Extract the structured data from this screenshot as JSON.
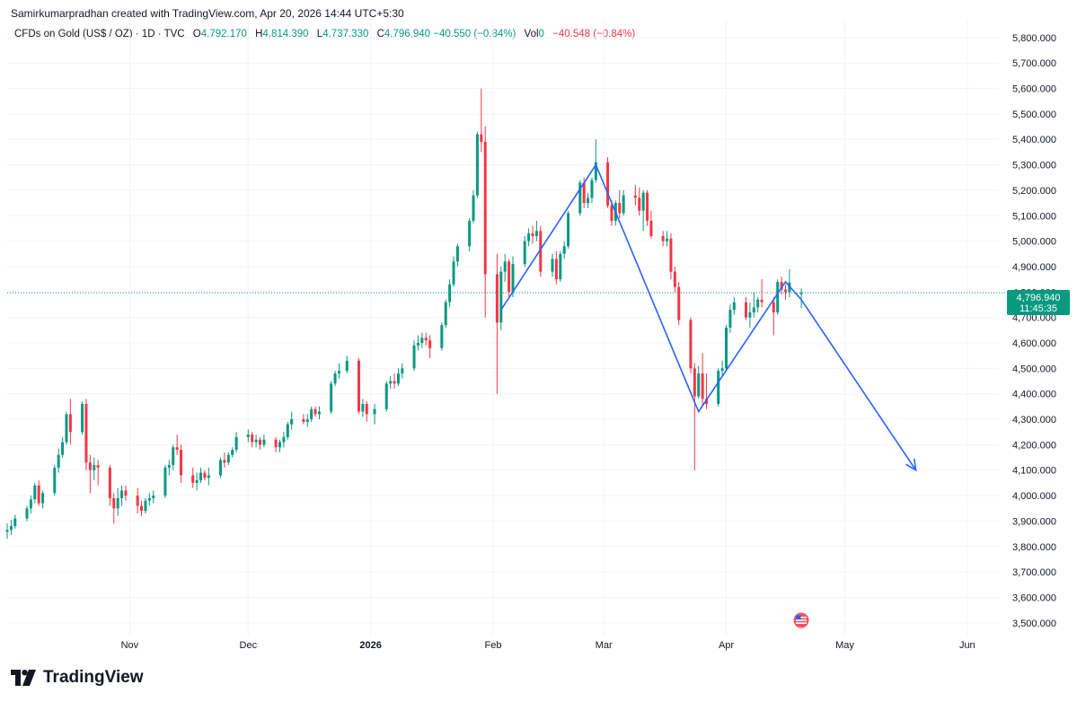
{
  "header": {
    "attribution": "Samirkumarpradhan created with TradingView.com, Apr 20, 2026 14:44 UTC+5:30"
  },
  "legend": {
    "symbol": "CFDs on Gold (US$ / OZ) · 1D · TVC",
    "o_label": "O",
    "o_value": "4,792.170",
    "h_label": "H",
    "h_value": "4,814.390",
    "l_label": "L",
    "l_value": "4,737.330",
    "c_label": "C",
    "c_value": "4,796.940",
    "change": "−40.550 (−0.84%)",
    "vol_label": "Vol",
    "vol_value": "0",
    "vol_change": "−40.548 (−0.84%)"
  },
  "price_tag": {
    "price": "4,796.940",
    "countdown": "11:45:35"
  },
  "logo": {
    "text": "TradingView"
  },
  "colors": {
    "up": "#089981",
    "down": "#f23645",
    "projection": "#2962ff",
    "grid": "#f0f3fa"
  },
  "chart_data": {
    "type": "candlestick",
    "title": "CFDs on Gold (US$ / OZ) · 1D · TVC",
    "xlabel": "",
    "ylabel": "",
    "ylim": [
      3450,
      5870
    ],
    "x_range": [
      "2025-10-01",
      "2026-06-09"
    ],
    "y_ticks": [
      {
        "value": 3500,
        "label": "3,500.000"
      },
      {
        "value": 3600,
        "label": "3,600.000"
      },
      {
        "value": 3700,
        "label": "3,700.000"
      },
      {
        "value": 3800,
        "label": "3,800.000"
      },
      {
        "value": 3900,
        "label": "3,900.000"
      },
      {
        "value": 4000,
        "label": "4,000.000"
      },
      {
        "value": 4100,
        "label": "4,100.000"
      },
      {
        "value": 4200,
        "label": "4,200.000"
      },
      {
        "value": 4300,
        "label": "4,300.000"
      },
      {
        "value": 4400,
        "label": "4,400.000"
      },
      {
        "value": 4500,
        "label": "4,500.000"
      },
      {
        "value": 4600,
        "label": "4,600.000"
      },
      {
        "value": 4700,
        "label": "4,700.000"
      },
      {
        "value": 4800,
        "label": "4,800.000"
      },
      {
        "value": 4900,
        "label": "4,900.000"
      },
      {
        "value": 5000,
        "label": "5,000.000"
      },
      {
        "value": 5100,
        "label": "5,100.000"
      },
      {
        "value": 5200,
        "label": "5,200.000"
      },
      {
        "value": 5300,
        "label": "5,300.000"
      },
      {
        "value": 5400,
        "label": "5,400.000"
      },
      {
        "value": 5500,
        "label": "5,500.000"
      },
      {
        "value": 5600,
        "label": "5,600.000"
      },
      {
        "value": 5700,
        "label": "5,700.000"
      },
      {
        "value": 5800,
        "label": "5,800.000"
      }
    ],
    "x_ticks": [
      {
        "date": "2025-11-01",
        "label": "Nov",
        "bold": false
      },
      {
        "date": "2025-12-01",
        "label": "Dec",
        "bold": false
      },
      {
        "date": "2026-01-01",
        "label": "2026",
        "bold": true
      },
      {
        "date": "2026-02-01",
        "label": "Feb",
        "bold": false
      },
      {
        "date": "2026-03-01",
        "label": "Mar",
        "bold": false
      },
      {
        "date": "2026-04-01",
        "label": "Apr",
        "bold": false
      },
      {
        "date": "2026-05-01",
        "label": "May",
        "bold": false
      },
      {
        "date": "2026-06-01",
        "label": "Jun",
        "bold": false
      }
    ],
    "last_price": 4796.94,
    "candles": [
      [
        "2025-10-01",
        3858,
        3890,
        3830,
        3865
      ],
      [
        "2025-10-02",
        3865,
        3905,
        3845,
        3880
      ],
      [
        "2025-10-03",
        3880,
        3925,
        3870,
        3910
      ],
      [
        "2025-10-06",
        3910,
        3960,
        3900,
        3950
      ],
      [
        "2025-10-07",
        3950,
        4000,
        3930,
        3985
      ],
      [
        "2025-10-08",
        3985,
        4050,
        3970,
        4040
      ],
      [
        "2025-10-09",
        4040,
        4060,
        3960,
        3970
      ],
      [
        "2025-10-10",
        3970,
        4020,
        3950,
        4010
      ],
      [
        "2025-10-13",
        4010,
        4120,
        4000,
        4110
      ],
      [
        "2025-10-14",
        4110,
        4185,
        4090,
        4160
      ],
      [
        "2025-10-15",
        4160,
        4230,
        4150,
        4210
      ],
      [
        "2025-10-16",
        4210,
        4330,
        4200,
        4320
      ],
      [
        "2025-10-17",
        4320,
        4380,
        4200,
        4250
      ],
      [
        "2025-10-20",
        4250,
        4370,
        4240,
        4360
      ],
      [
        "2025-10-21",
        4360,
        4380,
        4100,
        4130
      ],
      [
        "2025-10-22",
        4130,
        4160,
        4010,
        4100
      ],
      [
        "2025-10-23",
        4100,
        4150,
        4060,
        4120
      ],
      [
        "2025-10-24",
        4120,
        4140,
        4040,
        4110
      ],
      [
        "2025-10-27",
        4110,
        4120,
        3960,
        3990
      ],
      [
        "2025-10-28",
        3990,
        4010,
        3890,
        3950
      ],
      [
        "2025-10-29",
        3950,
        4030,
        3920,
        3990
      ],
      [
        "2025-10-30",
        3990,
        4040,
        3960,
        4020
      ],
      [
        "2025-10-31",
        4020,
        4040,
        3980,
        4000
      ],
      [
        "2025-11-03",
        4000,
        4030,
        3930,
        3960
      ],
      [
        "2025-11-04",
        3960,
        3980,
        3920,
        3940
      ],
      [
        "2025-11-05",
        3940,
        3990,
        3930,
        3980
      ],
      [
        "2025-11-06",
        3980,
        4010,
        3960,
        3990
      ],
      [
        "2025-11-07",
        3990,
        4020,
        3970,
        4000
      ],
      [
        "2025-11-10",
        4000,
        4120,
        3990,
        4110
      ],
      [
        "2025-11-11",
        4110,
        4140,
        4080,
        4120
      ],
      [
        "2025-11-12",
        4120,
        4200,
        4100,
        4190
      ],
      [
        "2025-11-13",
        4190,
        4240,
        4160,
        4180
      ],
      [
        "2025-11-14",
        4180,
        4200,
        4050,
        4080
      ],
      [
        "2025-11-17",
        4080,
        4110,
        4030,
        4050
      ],
      [
        "2025-11-18",
        4050,
        4090,
        4020,
        4060
      ],
      [
        "2025-11-19",
        4060,
        4110,
        4050,
        4090
      ],
      [
        "2025-11-20",
        4090,
        4100,
        4060,
        4070
      ],
      [
        "2025-11-21",
        4070,
        4110,
        4040,
        4080
      ],
      [
        "2025-11-24",
        4080,
        4150,
        4070,
        4140
      ],
      [
        "2025-11-25",
        4140,
        4170,
        4110,
        4130
      ],
      [
        "2025-11-26",
        4130,
        4170,
        4120,
        4160
      ],
      [
        "2025-11-27",
        4160,
        4190,
        4150,
        4180
      ],
      [
        "2025-11-28",
        4180,
        4250,
        4170,
        4230
      ],
      [
        "2025-12-01",
        4230,
        4260,
        4210,
        4240
      ],
      [
        "2025-12-02",
        4240,
        4250,
        4190,
        4210
      ],
      [
        "2025-12-03",
        4210,
        4240,
        4190,
        4220
      ],
      [
        "2025-12-04",
        4220,
        4230,
        4180,
        4200
      ],
      [
        "2025-12-05",
        4200,
        4240,
        4190,
        4220
      ],
      [
        "2025-12-08",
        4220,
        4230,
        4170,
        4190
      ],
      [
        "2025-12-09",
        4190,
        4220,
        4170,
        4210
      ],
      [
        "2025-12-10",
        4210,
        4250,
        4190,
        4230
      ],
      [
        "2025-12-11",
        4230,
        4290,
        4220,
        4280
      ],
      [
        "2025-12-12",
        4280,
        4330,
        4260,
        4300
      ],
      [
        "2025-12-15",
        4300,
        4320,
        4280,
        4290
      ],
      [
        "2025-12-16",
        4290,
        4320,
        4270,
        4300
      ],
      [
        "2025-12-17",
        4300,
        4350,
        4290,
        4340
      ],
      [
        "2025-12-18",
        4340,
        4350,
        4310,
        4320
      ],
      [
        "2025-12-19",
        4320,
        4350,
        4300,
        4330
      ],
      [
        "2025-12-22",
        4330,
        4450,
        4320,
        4440
      ],
      [
        "2025-12-23",
        4440,
        4490,
        4430,
        4480
      ],
      [
        "2025-12-24",
        4480,
        4520,
        4460,
        4490
      ],
      [
        "2025-12-26",
        4490,
        4550,
        4480,
        4530
      ],
      [
        "2025-12-29",
        4530,
        4540,
        4320,
        4330
      ],
      [
        "2025-12-30",
        4330,
        4380,
        4310,
        4360
      ],
      [
        "2025-12-31",
        4360,
        4370,
        4290,
        4320
      ],
      [
        "2026-01-02",
        4320,
        4360,
        4280,
        4340
      ],
      [
        "2026-01-05",
        4340,
        4450,
        4330,
        4440
      ],
      [
        "2026-01-06",
        4440,
        4470,
        4420,
        4450
      ],
      [
        "2026-01-07",
        4450,
        4480,
        4420,
        4440
      ],
      [
        "2026-01-08",
        4440,
        4500,
        4430,
        4480
      ],
      [
        "2026-01-09",
        4480,
        4520,
        4460,
        4500
      ],
      [
        "2026-01-12",
        4500,
        4610,
        4490,
        4590
      ],
      [
        "2026-01-13",
        4590,
        4630,
        4570,
        4600
      ],
      [
        "2026-01-14",
        4600,
        4640,
        4580,
        4620
      ],
      [
        "2026-01-15",
        4620,
        4640,
        4590,
        4610
      ],
      [
        "2026-01-16",
        4610,
        4630,
        4540,
        4580
      ],
      [
        "2026-01-19",
        4580,
        4680,
        4570,
        4670
      ],
      [
        "2026-01-20",
        4670,
        4770,
        4660,
        4760
      ],
      [
        "2026-01-21",
        4760,
        4850,
        4740,
        4830
      ],
      [
        "2026-01-22",
        4830,
        4940,
        4820,
        4920
      ],
      [
        "2026-01-23",
        4920,
        4990,
        4900,
        4980
      ],
      [
        "2026-01-26",
        4980,
        5090,
        4960,
        5080
      ],
      [
        "2026-01-27",
        5080,
        5200,
        5070,
        5180
      ],
      [
        "2026-01-28",
        5180,
        5430,
        5170,
        5420
      ],
      [
        "2026-01-29",
        5420,
        5600,
        5350,
        5390
      ],
      [
        "2026-01-30",
        5390,
        5450,
        4700,
        4870
      ],
      [
        "2026-02-02",
        4870,
        4950,
        4400,
        4680
      ],
      [
        "2026-02-03",
        4680,
        4900,
        4650,
        4880
      ],
      [
        "2026-02-04",
        4880,
        4950,
        4840,
        4920
      ],
      [
        "2026-02-05",
        4920,
        4930,
        4780,
        4800
      ],
      [
        "2026-02-06",
        4800,
        4940,
        4780,
        4910
      ],
      [
        "2026-02-09",
        4910,
        5020,
        4900,
        5000
      ],
      [
        "2026-02-10",
        5000,
        5050,
        4980,
        5030
      ],
      [
        "2026-02-11",
        5030,
        5060,
        4990,
        5020
      ],
      [
        "2026-02-12",
        5020,
        5080,
        5000,
        5040
      ],
      [
        "2026-02-13",
        5040,
        5060,
        4860,
        4880
      ],
      [
        "2026-02-16",
        4880,
        4950,
        4860,
        4930
      ],
      [
        "2026-02-17",
        4930,
        4960,
        4830,
        4850
      ],
      [
        "2026-02-18",
        4850,
        4960,
        4840,
        4950
      ],
      [
        "2026-02-19",
        4950,
        5000,
        4930,
        4980
      ],
      [
        "2026-02-20",
        4980,
        5120,
        4970,
        5110
      ],
      [
        "2026-02-23",
        5110,
        5240,
        5100,
        5230
      ],
      [
        "2026-02-24",
        5230,
        5250,
        5130,
        5150
      ],
      [
        "2026-02-25",
        5150,
        5190,
        5130,
        5170
      ],
      [
        "2026-02-26",
        5170,
        5250,
        5150,
        5240
      ],
      [
        "2026-02-27",
        5240,
        5400,
        5230,
        5310
      ],
      [
        "2026-03-02",
        5310,
        5330,
        5130,
        5140
      ],
      [
        "2026-03-03",
        5140,
        5160,
        5060,
        5080
      ],
      [
        "2026-03-04",
        5080,
        5160,
        5060,
        5150
      ],
      [
        "2026-03-05",
        5150,
        5200,
        5090,
        5110
      ],
      [
        "2026-03-06",
        5110,
        5200,
        5100,
        5180
      ],
      [
        "2026-03-09",
        5180,
        5220,
        5140,
        5170
      ],
      [
        "2026-03-10",
        5170,
        5210,
        5100,
        5120
      ],
      [
        "2026-03-11",
        5120,
        5200,
        5040,
        5190
      ],
      [
        "2026-03-12",
        5190,
        5200,
        5060,
        5080
      ],
      [
        "2026-03-13",
        5080,
        5120,
        5010,
        5020
      ],
      [
        "2026-03-16",
        5020,
        5040,
        4980,
        5000
      ],
      [
        "2026-03-17",
        5000,
        5040,
        4980,
        5010
      ],
      [
        "2026-03-18",
        5010,
        5030,
        4850,
        4880
      ],
      [
        "2026-03-19",
        4880,
        4900,
        4800,
        4820
      ],
      [
        "2026-03-20",
        4820,
        4840,
        4670,
        4690
      ],
      [
        "2026-03-23",
        4690,
        4700,
        4480,
        4500
      ],
      [
        "2026-03-24",
        4500,
        4520,
        4100,
        4390
      ],
      [
        "2026-03-25",
        4390,
        4510,
        4380,
        4480
      ],
      [
        "2026-03-26",
        4480,
        4560,
        4350,
        4380
      ],
      [
        "2026-03-27",
        4380,
        4480,
        4340,
        4360
      ],
      [
        "2026-03-30",
        4360,
        4500,
        4350,
        4490
      ],
      [
        "2026-03-31",
        4490,
        4530,
        4470,
        4500
      ],
      [
        "2026-04-01",
        4500,
        4670,
        4490,
        4660
      ],
      [
        "2026-04-02",
        4660,
        4750,
        4640,
        4730
      ],
      [
        "2026-04-03",
        4730,
        4780,
        4710,
        4760
      ],
      [
        "2026-04-06",
        4760,
        4780,
        4690,
        4700
      ],
      [
        "2026-04-07",
        4700,
        4760,
        4660,
        4720
      ],
      [
        "2026-04-08",
        4720,
        4800,
        4700,
        4740
      ],
      [
        "2026-04-09",
        4740,
        4780,
        4720,
        4770
      ],
      [
        "2026-04-10",
        4770,
        4850,
        4740,
        4760
      ],
      [
        "2026-04-13",
        4760,
        4780,
        4630,
        4720
      ],
      [
        "2026-04-14",
        4720,
        4850,
        4710,
        4840
      ],
      [
        "2026-04-15",
        4840,
        4860,
        4790,
        4810
      ],
      [
        "2026-04-16",
        4810,
        4830,
        4770,
        4800
      ],
      [
        "2026-04-17",
        4800,
        4890,
        4780,
        4837
      ],
      [
        "2026-04-20",
        4792,
        4814,
        4737,
        4797
      ]
    ],
    "annotations": {
      "zigzag_path": [
        [
          "2026-02-03",
          4730
        ],
        [
          "2026-02-27",
          5300
        ],
        [
          "2026-03-25",
          4330
        ],
        [
          "2026-04-16",
          4840
        ],
        [
          "2026-04-20",
          4770
        ],
        [
          "2026-05-19",
          4100
        ]
      ]
    }
  }
}
